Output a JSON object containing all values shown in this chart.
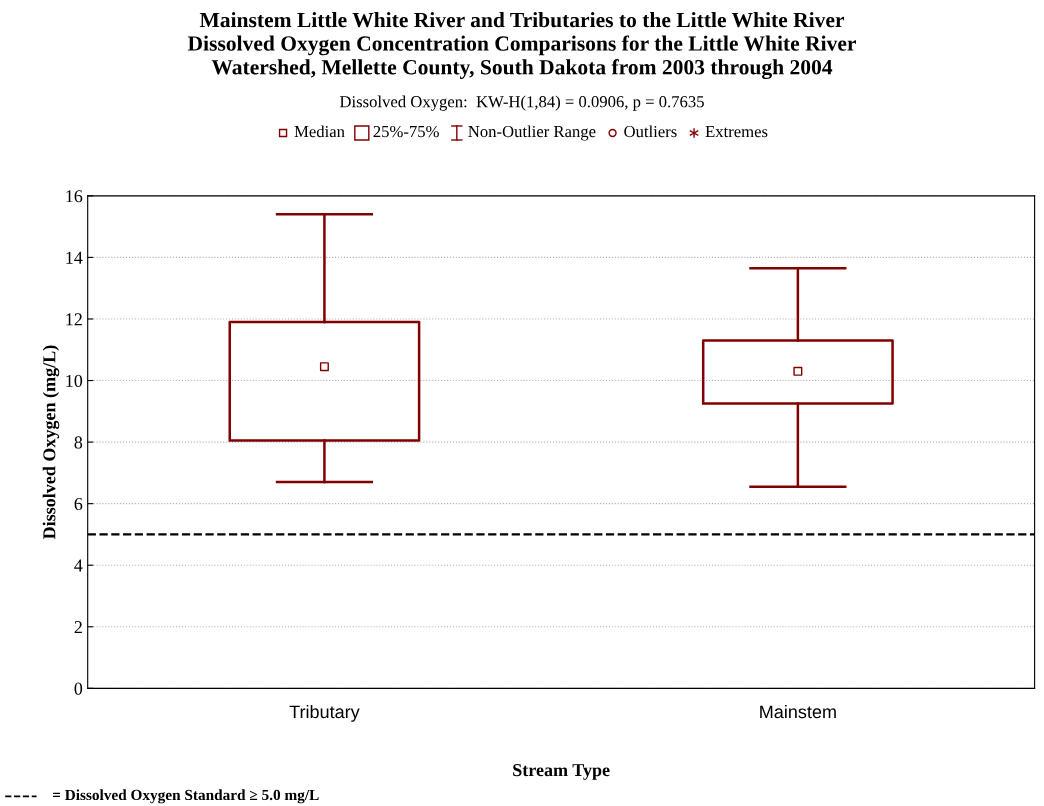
{
  "chart_data": {
    "type": "box",
    "title": "Mainstem Little White River and Tributaries to the Little White River\nDissolved Oxygen Concentration Comparisons for the Little White River\nWatershed, Mellette County, South Dakota from 2003 through 2004",
    "subtitle": "Dissolved Oxygen:  KW-H(1,84) = 0.0906, p = 0.7635",
    "xlabel": "Stream Type",
    "ylabel": "Dissolved Oxygen (mg/L)",
    "categories": [
      "Tributary",
      "Mainstem"
    ],
    "series": [
      {
        "color": "#800000",
        "boxes": [
          {
            "low": 6.7,
            "q1": 8.05,
            "median": 10.45,
            "q3": 11.9,
            "high": 15.4
          },
          {
            "low": 6.55,
            "q1": 9.25,
            "median": 10.3,
            "q3": 11.3,
            "high": 13.65
          }
        ]
      }
    ],
    "ylim": [
      0,
      16
    ],
    "yticks": [
      0,
      2,
      4,
      6,
      8,
      10,
      12,
      14,
      16
    ],
    "grid": "y",
    "annotations": [
      "Median",
      "25%-75%",
      "Non-Outlier Range",
      "Outliers",
      "Extremes"
    ],
    "ref_lines": [
      {
        "axis": "y",
        "value": 5,
        "label": "= Dissolved Oxygen Standard ≥ 5.0 mg/L",
        "color": "#000000",
        "line_style": "dashed"
      }
    ]
  }
}
